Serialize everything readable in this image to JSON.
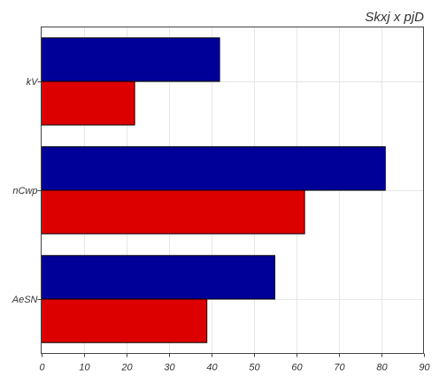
{
  "chart_data": {
    "type": "bar",
    "orientation": "horizontal",
    "title": "Skxj x pjD",
    "xlabel": "",
    "ylabel": "",
    "categories": [
      "kV",
      "nCwp",
      "AeSN"
    ],
    "series": [
      {
        "values": [
          42,
          81,
          55
        ],
        "color": "#000099"
      },
      {
        "values": [
          22,
          62,
          39
        ],
        "color": "#dd0000"
      }
    ],
    "xlim": [
      0,
      90
    ],
    "xticks": [
      0,
      10,
      20,
      30,
      40,
      50,
      60,
      70,
      80,
      90
    ],
    "grid": true
  }
}
